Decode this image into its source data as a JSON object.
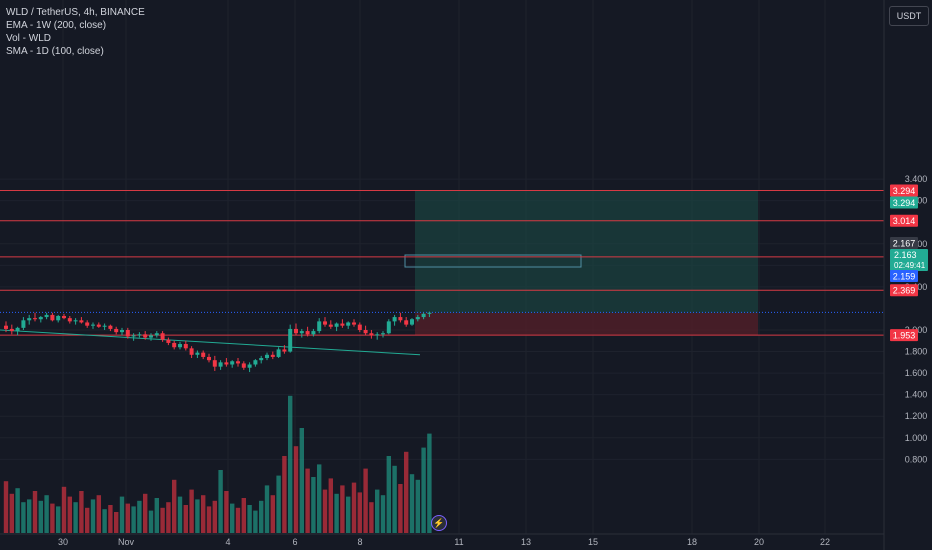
{
  "header": {
    "symbol_line": "WLD / TetherUS, 4h, BINANCE",
    "indicators": [
      "EMA - 1W (200, close)",
      "Vol - WLD",
      "SMA - 1D (100, close)"
    ]
  },
  "price_axis": {
    "currency": "USDT",
    "ticks": [
      "3.400",
      "3.200",
      "2.800",
      "2.600",
      "2.400",
      "2.000",
      "1.800",
      "1.600",
      "1.400",
      "1.200",
      "1.000",
      "0.800"
    ]
  },
  "time_axis": {
    "labels": [
      "30",
      "Nov",
      "4",
      "6",
      "8",
      "11",
      "13",
      "15",
      "18",
      "20",
      "22"
    ]
  },
  "horizontal_lines": [
    {
      "value": "3.294",
      "label_color": "#f23645"
    },
    {
      "value": "3.014",
      "label_color": "#f23645"
    },
    {
      "value": "2.678",
      "label_color": "#f23645"
    },
    {
      "value": "2.369",
      "label_color": "#f23645"
    },
    {
      "value": "1.953",
      "label_color": "#f23645"
    }
  ],
  "price_labels": [
    {
      "text": "3.294",
      "color": "#22ab94",
      "role": "take-profit"
    },
    {
      "text": "2.167",
      "color": "#363a45",
      "role": "high"
    },
    {
      "text": "2.163",
      "color": "#22ab94",
      "role": "last-price"
    },
    {
      "text": "02:49:41",
      "color": "#22ab94",
      "role": "countdown"
    },
    {
      "text": "2.159",
      "color": "#2962ff",
      "role": "entry"
    }
  ],
  "colors": {
    "up": "#22ab94",
    "down": "#f23645",
    "bg": "#151924",
    "grid": "#1e222d",
    "text": "#b2b5be"
  },
  "chart_data": {
    "type": "candlestick",
    "timeframe": "4h",
    "ylim": [
      0.7,
      3.48
    ],
    "candles": [
      [
        2.04,
        2.08,
        1.98,
        2.01
      ],
      [
        2.01,
        2.05,
        1.96,
        1.99
      ],
      [
        1.99,
        2.03,
        1.95,
        2.02
      ],
      [
        2.02,
        2.12,
        2.0,
        2.09
      ],
      [
        2.09,
        2.14,
        2.05,
        2.11
      ],
      [
        2.11,
        2.16,
        2.08,
        2.1
      ],
      [
        2.1,
        2.13,
        2.07,
        2.12
      ],
      [
        2.12,
        2.16,
        2.1,
        2.14
      ],
      [
        2.14,
        2.16,
        2.08,
        2.09
      ],
      [
        2.09,
        2.14,
        2.07,
        2.13
      ],
      [
        2.13,
        2.15,
        2.1,
        2.11
      ],
      [
        2.11,
        2.13,
        2.06,
        2.08
      ],
      [
        2.08,
        2.11,
        2.05,
        2.09
      ],
      [
        2.09,
        2.12,
        2.06,
        2.07
      ],
      [
        2.07,
        2.09,
        2.02,
        2.04
      ],
      [
        2.04,
        2.07,
        2.01,
        2.05
      ],
      [
        2.05,
        2.07,
        2.02,
        2.03
      ],
      [
        2.03,
        2.06,
        2.0,
        2.04
      ],
      [
        2.04,
        2.05,
        1.99,
        2.01
      ],
      [
        2.01,
        2.03,
        1.96,
        1.98
      ],
      [
        1.98,
        2.02,
        1.95,
        2.0
      ],
      [
        2.0,
        2.02,
        1.92,
        1.94
      ],
      [
        1.94,
        1.97,
        1.9,
        1.95
      ],
      [
        1.95,
        1.98,
        1.93,
        1.96
      ],
      [
        1.96,
        1.99,
        1.91,
        1.93
      ],
      [
        1.93,
        1.97,
        1.9,
        1.95
      ],
      [
        1.95,
        1.99,
        1.93,
        1.97
      ],
      [
        1.97,
        1.99,
        1.89,
        1.91
      ],
      [
        1.91,
        1.93,
        1.86,
        1.88
      ],
      [
        1.88,
        1.9,
        1.82,
        1.84
      ],
      [
        1.84,
        1.89,
        1.82,
        1.87
      ],
      [
        1.87,
        1.9,
        1.81,
        1.83
      ],
      [
        1.83,
        1.85,
        1.74,
        1.77
      ],
      [
        1.77,
        1.81,
        1.74,
        1.79
      ],
      [
        1.79,
        1.81,
        1.73,
        1.75
      ],
      [
        1.75,
        1.78,
        1.7,
        1.72
      ],
      [
        1.72,
        1.76,
        1.62,
        1.66
      ],
      [
        1.66,
        1.72,
        1.63,
        1.7
      ],
      [
        1.7,
        1.74,
        1.66,
        1.68
      ],
      [
        1.68,
        1.72,
        1.65,
        1.71
      ],
      [
        1.71,
        1.74,
        1.66,
        1.69
      ],
      [
        1.69,
        1.71,
        1.63,
        1.65
      ],
      [
        1.65,
        1.7,
        1.61,
        1.68
      ],
      [
        1.68,
        1.73,
        1.66,
        1.72
      ],
      [
        1.72,
        1.76,
        1.69,
        1.74
      ],
      [
        1.74,
        1.79,
        1.72,
        1.77
      ],
      [
        1.77,
        1.8,
        1.73,
        1.75
      ],
      [
        1.75,
        1.84,
        1.74,
        1.82
      ],
      [
        1.82,
        1.86,
        1.78,
        1.8
      ],
      [
        1.8,
        2.05,
        1.79,
        2.01
      ],
      [
        2.01,
        2.06,
        1.95,
        1.97
      ],
      [
        1.97,
        2.01,
        1.93,
        1.99
      ],
      [
        1.99,
        2.03,
        1.94,
        1.96
      ],
      [
        1.96,
        2.01,
        1.94,
        1.99
      ],
      [
        1.99,
        2.11,
        1.97,
        2.08
      ],
      [
        2.08,
        2.12,
        2.03,
        2.05
      ],
      [
        2.05,
        2.09,
        2.01,
        2.03
      ],
      [
        2.03,
        2.07,
        1.99,
        2.06
      ],
      [
        2.06,
        2.1,
        2.02,
        2.04
      ],
      [
        2.04,
        2.08,
        2.01,
        2.07
      ],
      [
        2.07,
        2.1,
        2.03,
        2.05
      ],
      [
        2.05,
        2.07,
        1.98,
        2.0
      ],
      [
        2.0,
        2.04,
        1.95,
        1.97
      ],
      [
        1.97,
        2.0,
        1.92,
        1.95
      ],
      [
        1.95,
        1.98,
        1.91,
        1.96
      ],
      [
        1.96,
        1.99,
        1.93,
        1.97
      ],
      [
        1.97,
        2.1,
        1.96,
        2.08
      ],
      [
        2.08,
        2.14,
        2.04,
        2.12
      ],
      [
        2.12,
        2.16,
        2.07,
        2.09
      ],
      [
        2.09,
        2.12,
        2.03,
        2.05
      ],
      [
        2.05,
        2.11,
        2.04,
        2.1
      ],
      [
        2.1,
        2.14,
        2.08,
        2.12
      ],
      [
        2.12,
        2.16,
        2.1,
        2.15
      ],
      [
        2.15,
        2.17,
        2.12,
        2.16
      ]
    ],
    "volume": [
      0.37,
      0.28,
      0.32,
      0.22,
      0.24,
      0.3,
      0.23,
      0.27,
      0.21,
      0.19,
      0.33,
      0.26,
      0.22,
      0.3,
      0.18,
      0.24,
      0.27,
      0.17,
      0.2,
      0.15,
      0.26,
      0.21,
      0.19,
      0.23,
      0.28,
      0.16,
      0.25,
      0.18,
      0.22,
      0.38,
      0.26,
      0.2,
      0.31,
      0.24,
      0.27,
      0.19,
      0.23,
      0.45,
      0.3,
      0.21,
      0.18,
      0.25,
      0.2,
      0.16,
      0.23,
      0.34,
      0.27,
      0.41,
      0.55,
      0.98,
      0.62,
      0.75,
      0.46,
      0.4,
      0.49,
      0.31,
      0.39,
      0.28,
      0.34,
      0.26,
      0.36,
      0.29,
      0.46,
      0.22,
      0.31,
      0.27,
      0.55,
      0.48,
      0.35,
      0.58,
      0.42,
      0.38,
      0.61,
      0.71
    ],
    "sma_line": {
      "from": 2.0,
      "to": 1.77
    },
    "position": {
      "entry": 2.159,
      "take_profit": 3.294,
      "stop": 1.953
    }
  }
}
